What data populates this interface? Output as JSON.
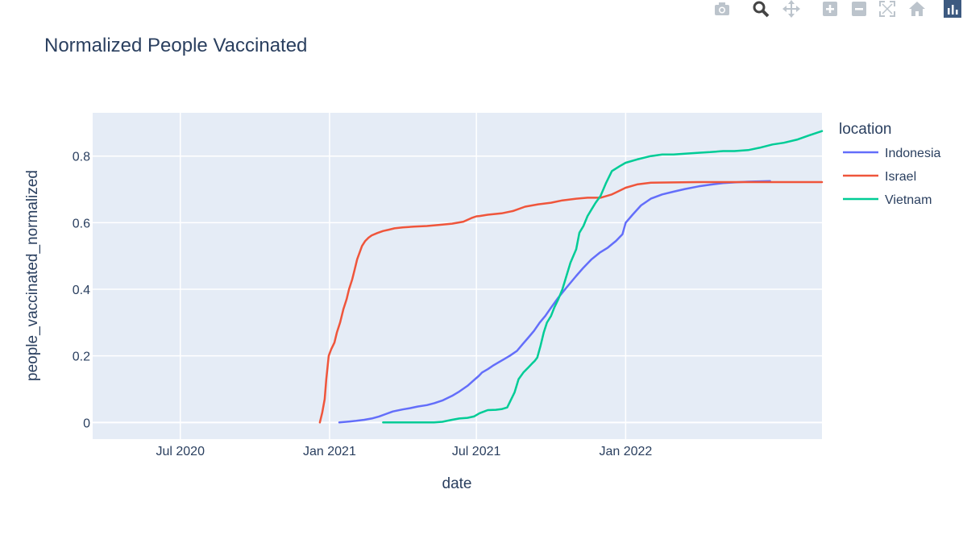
{
  "modebar": {
    "buttons": [
      {
        "name": "camera-icon"
      },
      {
        "name": "zoom-icon"
      },
      {
        "name": "pan-icon"
      },
      {
        "name": "zoom-in-icon"
      },
      {
        "name": "zoom-out-icon"
      },
      {
        "name": "autoscale-icon"
      },
      {
        "name": "reset-axes-icon"
      },
      {
        "name": "plotly-logo-icon"
      }
    ],
    "icon_color": "#bcc4cc",
    "logo_color": "#3d5a80"
  },
  "chart_data": {
    "type": "line",
    "title": "Normalized People Vaccinated",
    "xlabel": "date",
    "ylabel": "people_vaccinated_normalized",
    "x_type": "date",
    "xlim": [
      "2020-03-15",
      "2022-08-31"
    ],
    "ylim": [
      -0.05,
      0.93
    ],
    "x_ticks": [
      {
        "date": "2020-07-01",
        "label": "Jul 2020"
      },
      {
        "date": "2021-01-01",
        "label": "Jan 2021"
      },
      {
        "date": "2021-07-01",
        "label": "Jul 2021"
      },
      {
        "date": "2022-01-01",
        "label": "Jan 2022"
      }
    ],
    "y_ticks": [
      {
        "value": 0,
        "label": "0"
      },
      {
        "value": 0.2,
        "label": "0.2"
      },
      {
        "value": 0.4,
        "label": "0.4"
      },
      {
        "value": 0.6,
        "label": "0.6"
      },
      {
        "value": 0.8,
        "label": "0.8"
      }
    ],
    "grid": true,
    "legend": {
      "title": "location",
      "placement": "right"
    },
    "series": [
      {
        "name": "Indonesia",
        "color": "#636efa",
        "x": [
          "2021-01-13",
          "2021-01-26",
          "2021-02-03",
          "2021-02-13",
          "2021-02-22",
          "2021-03-03",
          "2021-03-11",
          "2021-03-20",
          "2021-04-01",
          "2021-04-10",
          "2021-04-20",
          "2021-05-01",
          "2021-05-10",
          "2021-05-20",
          "2021-06-01",
          "2021-06-10",
          "2021-06-20",
          "2021-06-27",
          "2021-07-04",
          "2021-07-08",
          "2021-07-15",
          "2021-07-21",
          "2021-07-28",
          "2021-08-04",
          "2021-08-11",
          "2021-08-20",
          "2021-08-27",
          "2021-09-03",
          "2021-09-10",
          "2021-09-17",
          "2021-09-24",
          "2021-10-01",
          "2021-10-10",
          "2021-10-20",
          "2021-11-01",
          "2021-11-10",
          "2021-11-20",
          "2021-11-30",
          "2021-12-10",
          "2021-12-20",
          "2021-12-28",
          "2022-01-01",
          "2022-01-10",
          "2022-01-20",
          "2022-02-01",
          "2022-02-15",
          "2022-03-01",
          "2022-03-15",
          "2022-04-01",
          "2022-04-15",
          "2022-05-01",
          "2022-05-15",
          "2022-06-01",
          "2022-06-15",
          "2022-06-28"
        ],
        "values": [
          0.0,
          0.003,
          0.005,
          0.008,
          0.012,
          0.018,
          0.025,
          0.033,
          0.039,
          0.043,
          0.048,
          0.052,
          0.058,
          0.066,
          0.08,
          0.093,
          0.11,
          0.125,
          0.14,
          0.15,
          0.16,
          0.17,
          0.18,
          0.19,
          0.2,
          0.215,
          0.235,
          0.255,
          0.275,
          0.3,
          0.32,
          0.345,
          0.375,
          0.405,
          0.44,
          0.465,
          0.49,
          0.51,
          0.525,
          0.545,
          0.565,
          0.6,
          0.625,
          0.652,
          0.672,
          0.685,
          0.693,
          0.701,
          0.709,
          0.714,
          0.719,
          0.721,
          0.723,
          0.724,
          0.725
        ]
      },
      {
        "name": "Israel",
        "color": "#ef553b",
        "x": [
          "2020-12-20",
          "2020-12-23",
          "2020-12-26",
          "2020-12-28",
          "2020-12-31",
          "2021-01-03",
          "2021-01-07",
          "2021-01-10",
          "2021-01-14",
          "2021-01-18",
          "2021-01-22",
          "2021-01-25",
          "2021-01-29",
          "2021-02-01",
          "2021-02-04",
          "2021-02-07",
          "2021-02-10",
          "2021-02-14",
          "2021-02-18",
          "2021-02-22",
          "2021-03-01",
          "2021-03-08",
          "2021-03-15",
          "2021-03-22",
          "2021-04-01",
          "2021-04-15",
          "2021-05-01",
          "2021-05-15",
          "2021-06-01",
          "2021-06-15",
          "2021-06-25",
          "2021-07-01",
          "2021-07-05",
          "2021-07-15",
          "2021-08-01",
          "2021-08-15",
          "2021-08-30",
          "2021-09-15",
          "2021-10-01",
          "2021-10-15",
          "2021-11-01",
          "2021-11-15",
          "2021-12-01",
          "2021-12-15",
          "2022-01-01",
          "2022-01-15",
          "2022-02-01",
          "2022-03-01",
          "2022-04-01",
          "2022-05-01",
          "2022-06-01",
          "2022-07-01",
          "2022-08-01",
          "2022-08-31"
        ],
        "values": [
          0.0,
          0.03,
          0.07,
          0.13,
          0.2,
          0.22,
          0.24,
          0.27,
          0.3,
          0.34,
          0.37,
          0.4,
          0.43,
          0.46,
          0.49,
          0.51,
          0.53,
          0.545,
          0.555,
          0.562,
          0.569,
          0.575,
          0.579,
          0.583,
          0.586,
          0.588,
          0.59,
          0.593,
          0.597,
          0.603,
          0.614,
          0.619,
          0.62,
          0.624,
          0.628,
          0.635,
          0.648,
          0.655,
          0.66,
          0.667,
          0.672,
          0.675,
          0.675,
          0.685,
          0.705,
          0.715,
          0.72,
          0.721,
          0.722,
          0.722,
          0.722,
          0.722,
          0.722,
          0.722
        ]
      },
      {
        "name": "Vietnam",
        "color": "#00cc96",
        "x": [
          "2021-03-08",
          "2021-03-20",
          "2021-04-01",
          "2021-04-15",
          "2021-05-01",
          "2021-05-10",
          "2021-05-20",
          "2021-06-01",
          "2021-06-10",
          "2021-06-20",
          "2021-06-28",
          "2021-07-05",
          "2021-07-15",
          "2021-07-25",
          "2021-08-01",
          "2021-08-08",
          "2021-08-13",
          "2021-08-17",
          "2021-08-22",
          "2021-08-28",
          "2021-09-03",
          "2021-09-08",
          "2021-09-11",
          "2021-09-14",
          "2021-09-18",
          "2021-09-22",
          "2021-09-26",
          "2021-10-01",
          "2021-10-05",
          "2021-10-10",
          "2021-10-15",
          "2021-10-20",
          "2021-10-25",
          "2021-11-01",
          "2021-11-05",
          "2021-11-10",
          "2021-11-15",
          "2021-11-20",
          "2021-11-25",
          "2021-12-01",
          "2021-12-08",
          "2021-12-15",
          "2021-12-25",
          "2022-01-01",
          "2022-01-15",
          "2022-02-01",
          "2022-02-15",
          "2022-03-01",
          "2022-03-15",
          "2022-04-01",
          "2022-04-15",
          "2022-05-01",
          "2022-05-15",
          "2022-06-01",
          "2022-06-15",
          "2022-07-01",
          "2022-07-15",
          "2022-08-01",
          "2022-08-15",
          "2022-08-31"
        ],
        "values": [
          0.0,
          0.0,
          0.0,
          0.0,
          0.0,
          0.0,
          0.002,
          0.008,
          0.012,
          0.014,
          0.018,
          0.028,
          0.037,
          0.038,
          0.04,
          0.045,
          0.07,
          0.09,
          0.13,
          0.15,
          0.165,
          0.178,
          0.185,
          0.195,
          0.23,
          0.27,
          0.3,
          0.32,
          0.345,
          0.37,
          0.4,
          0.44,
          0.48,
          0.52,
          0.57,
          0.59,
          0.62,
          0.64,
          0.66,
          0.68,
          0.72,
          0.755,
          0.77,
          0.78,
          0.79,
          0.8,
          0.805,
          0.805,
          0.807,
          0.81,
          0.812,
          0.815,
          0.815,
          0.818,
          0.825,
          0.835,
          0.84,
          0.85,
          0.862,
          0.875
        ]
      }
    ]
  }
}
